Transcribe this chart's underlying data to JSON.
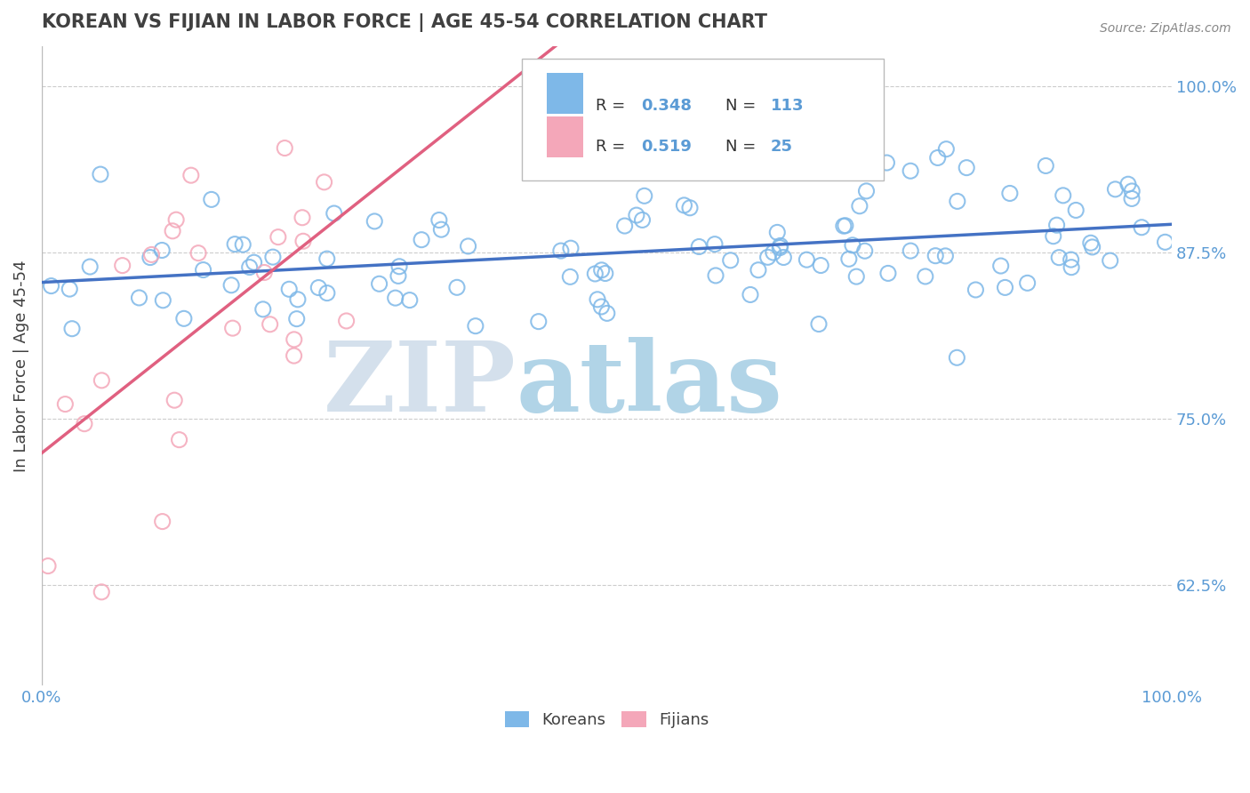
{
  "title": "KOREAN VS FIJIAN IN LABOR FORCE | AGE 45-54 CORRELATION CHART",
  "source_text": "Source: ZipAtlas.com",
  "ylabel": "In Labor Force | Age 45-54",
  "xlim": [
    0.0,
    1.0
  ],
  "ylim": [
    0.55,
    1.03
  ],
  "y_ticks": [
    0.625,
    0.75,
    0.875,
    1.0
  ],
  "y_tick_labels": [
    "62.5%",
    "75.0%",
    "87.5%",
    "100.0%"
  ],
  "korean_R": 0.348,
  "korean_N": 113,
  "fijian_R": 0.519,
  "fijian_N": 25,
  "korean_color": "#7EB8E8",
  "fijian_color": "#F4A7B9",
  "korean_line_color": "#4472C4",
  "fijian_line_color": "#E06080",
  "watermark_zip": "ZIP",
  "watermark_atlas": "atlas",
  "watermark_color_zip": "#B8CCE0",
  "watermark_color_atlas": "#7EB8D8",
  "legend_labels": [
    "Koreans",
    "Fijians"
  ],
  "background_color": "#FFFFFF",
  "grid_color": "#CCCCCC",
  "title_color": "#404040",
  "axis_label_color": "#404040",
  "tick_label_color": "#5B9BD5",
  "right_tick_label_color": "#5B9BD5",
  "legend_R_color": "#5B9BD5"
}
